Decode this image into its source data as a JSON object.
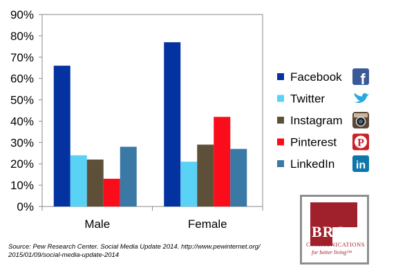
{
  "chart_data": {
    "type": "bar",
    "categories": [
      "Male",
      "Female"
    ],
    "series": [
      {
        "name": "Facebook",
        "values": [
          66,
          77
        ],
        "color": "#0432a0",
        "icon": "facebook-icon"
      },
      {
        "name": "Twitter",
        "values": [
          24,
          21
        ],
        "color": "#5ad2f6",
        "icon": "twitter-icon"
      },
      {
        "name": "Instagram",
        "values": [
          22,
          29
        ],
        "color": "#5e5038",
        "icon": "instagram-icon"
      },
      {
        "name": "Pinterest",
        "values": [
          13,
          42
        ],
        "color": "#fb0c1a",
        "icon": "pinterest-icon"
      },
      {
        "name": "LinkedIn",
        "values": [
          28,
          27
        ],
        "color": "#3a78a6",
        "icon": "linkedin-icon"
      }
    ],
    "ylim": [
      0,
      90
    ],
    "yticks": [
      "0%",
      "10%",
      "20%",
      "30%",
      "40%",
      "50%",
      "60%",
      "70%",
      "80%",
      "90%"
    ],
    "grid": false,
    "legend_position": "right"
  },
  "source": "Source: Pew Research Center. Social Media Update 2014. http://www.pewinternet.org/ 2015/01/09/social-media-update-2014",
  "logo": {
    "name": "BRG",
    "line2": "COMMUNICATIONS",
    "tagline": "for better living™"
  },
  "icon_glyphs": {
    "facebook": "f",
    "linkedin": "in",
    "pinterest": "P"
  }
}
